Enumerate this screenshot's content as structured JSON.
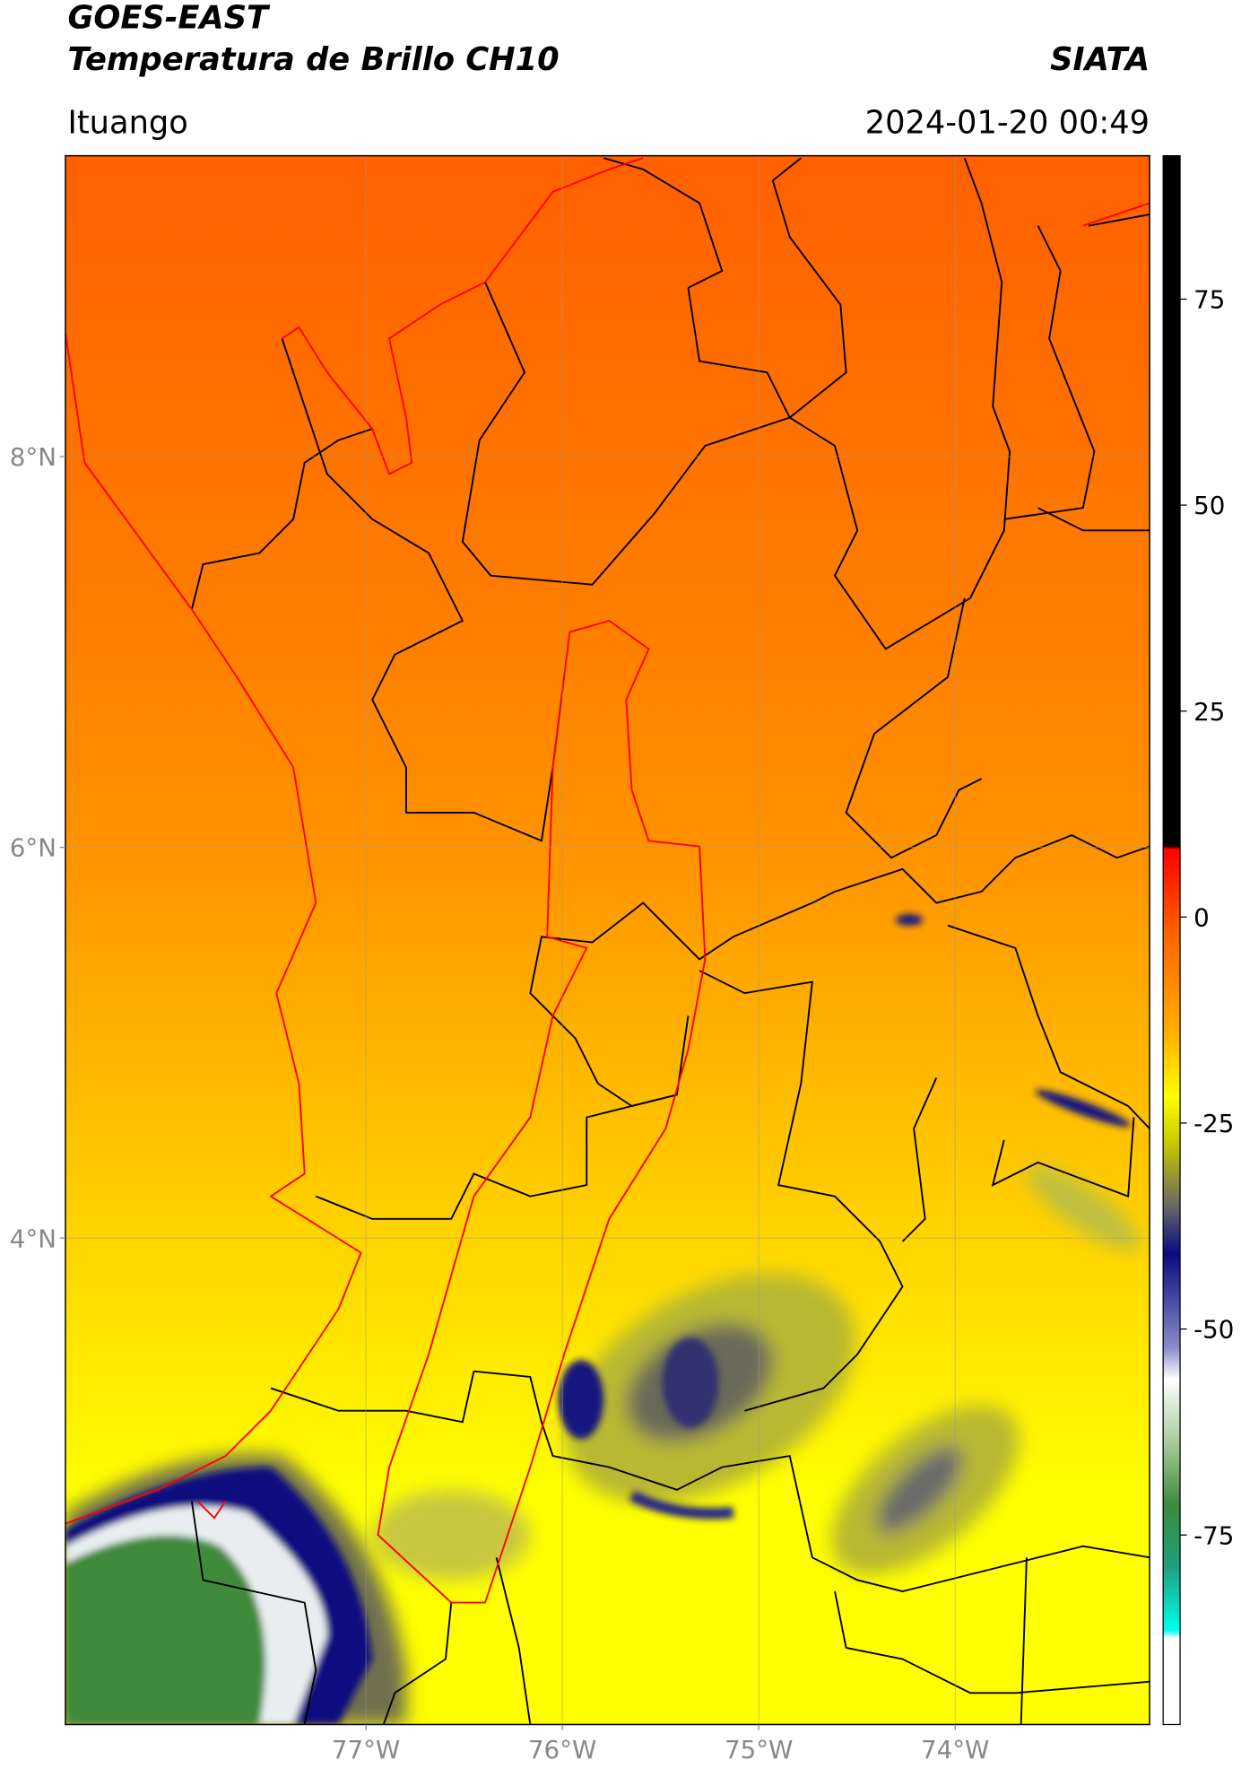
{
  "header": {
    "satellite": "GOES-EAST",
    "product": "Temperatura de Brillo CH10",
    "source": "SIATA",
    "region": "Ituango",
    "timestamp": "2024-01-20 00:49"
  },
  "map": {
    "lon_lim": [
      -78.53,
      -73.01
    ],
    "lat_lim": [
      1.51,
      9.54
    ],
    "grid": true,
    "lat_ticks": [
      {
        "value": 8,
        "label": "8°N"
      },
      {
        "value": 6,
        "label": "6°N"
      },
      {
        "value": 4,
        "label": "4°N"
      }
    ],
    "lon_ticks": [
      {
        "value": -77,
        "label": "77°W"
      },
      {
        "value": -76,
        "label": "76°W"
      },
      {
        "value": -75,
        "label": "75°W"
      },
      {
        "value": -74,
        "label": "74°W"
      }
    ]
  },
  "colorbar": {
    "lim": [
      -98,
      92.4
    ],
    "ticks": [
      75,
      50,
      25,
      0,
      -25,
      -50,
      -75
    ]
  }
}
